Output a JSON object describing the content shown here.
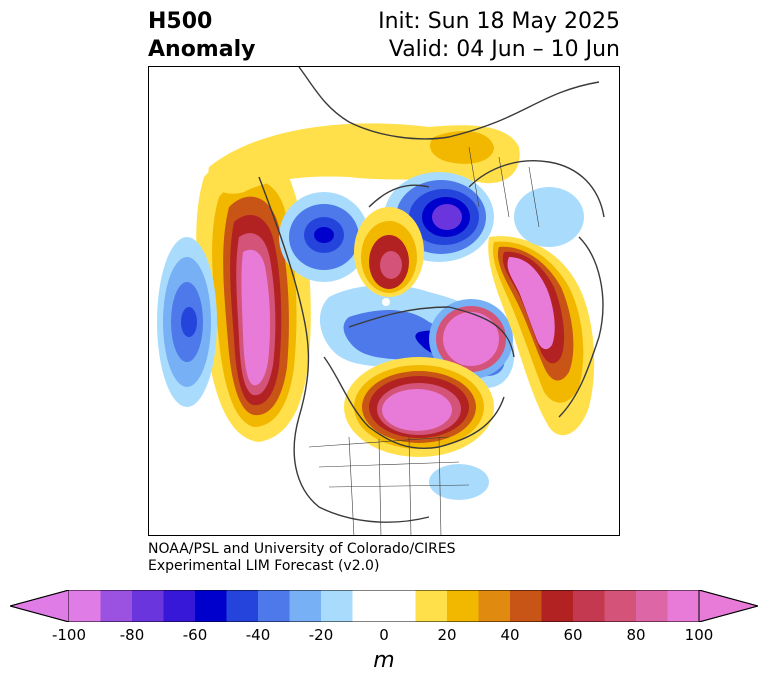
{
  "title": {
    "left_line1": "H500",
    "left_line2": "Anomaly",
    "right_line1": "Init: Sun 18 May 2025",
    "right_line2": "Valid: 04 Jun – 10 Jun"
  },
  "credit": {
    "line1": "NOAA/PSL and University of Colorado/CIRES",
    "line2": "Experimental LIM Forecast (v2.0)"
  },
  "colorbar": {
    "unit": "m",
    "tick_labels": [
      "-100",
      "-80",
      "-60",
      "-40",
      "-20",
      "0",
      "20",
      "40",
      "60",
      "80",
      "100"
    ],
    "colors": [
      "#e07ce6",
      "#9b52e0",
      "#6a35dc",
      "#3718d8",
      "#0000cc",
      "#2444dc",
      "#4d79ea",
      "#77b0f4",
      "#a9dcfc",
      "#ffffff",
      "#ffffff",
      "#ffe04a",
      "#f2b800",
      "#e08a10",
      "#c85515",
      "#b22222",
      "#c43850",
      "#d35478",
      "#dc66a6",
      "#e87ad8"
    ]
  },
  "map": {
    "region": "North America and North Atlantic, polar stereographic",
    "features": [
      {
        "label": "positive anomaly",
        "location": "west of North America (NE Pacific)"
      },
      {
        "label": "negative anomaly",
        "location": "far NE Pacific"
      },
      {
        "label": "positive anomaly",
        "location": "eastern Canada / Great Lakes"
      },
      {
        "label": "negative anomaly",
        "location": "Hudson Bay to Labrador Sea"
      },
      {
        "label": "negative anomaly",
        "location": "Greenland"
      },
      {
        "label": "positive anomaly",
        "location": "Scandinavia / NW Europe"
      },
      {
        "label": "positive anomaly",
        "location": "Arctic Canada"
      }
    ]
  }
}
